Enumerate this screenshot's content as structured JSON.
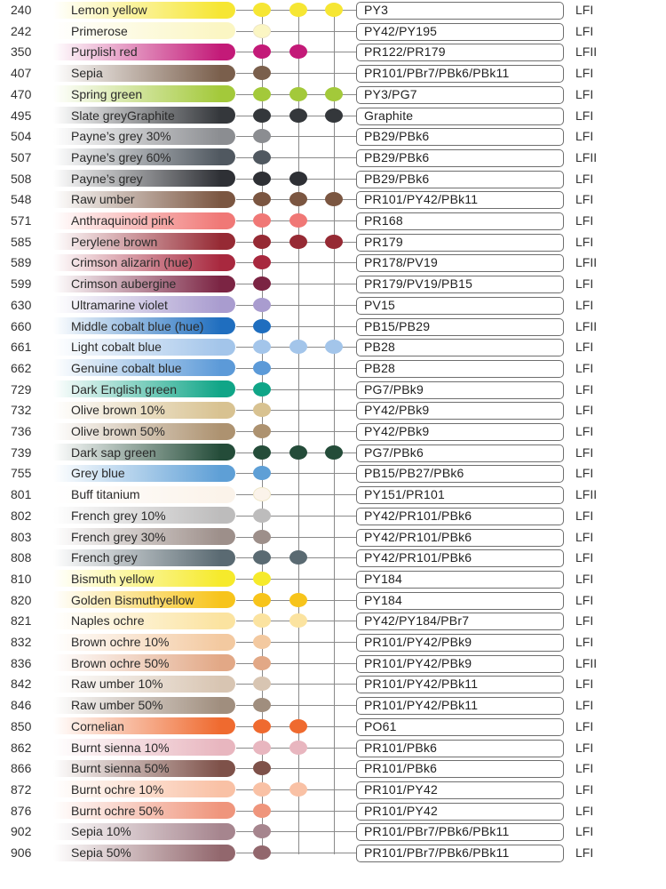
{
  "colors": [
    {
      "code": "240",
      "name": "Lemon yellow",
      "pigments": "PY3",
      "lf": "LFI",
      "color": "#f6e633",
      "dots": [
        true,
        true,
        true
      ]
    },
    {
      "code": "242",
      "name": "Primerose",
      "pigments": "PY42/PY195",
      "lf": "LFI",
      "color": "#fbf6c3",
      "dots": [
        true,
        false,
        false
      ]
    },
    {
      "code": "350",
      "name": "Purplish red",
      "pigments": "PR122/PR179",
      "lf": "LFII",
      "color": "#c31a78",
      "dots": [
        true,
        true,
        false
      ]
    },
    {
      "code": "407",
      "name": "Sepia",
      "pigments": "PR101/PBr7/PBk6/PBk11",
      "lf": "LFI",
      "color": "#7a5f4c",
      "dots": [
        true,
        false,
        false
      ]
    },
    {
      "code": "470",
      "name": "Spring green",
      "pigments": "PY3/PG7",
      "lf": "LFI",
      "color": "#a3c93a",
      "dots": [
        true,
        true,
        true
      ]
    },
    {
      "code": "495",
      "name": "Slate greyGraphite",
      "pigments": "Graphite",
      "lf": "LFI",
      "color": "#34373b",
      "dots": [
        true,
        true,
        true
      ]
    },
    {
      "code": "504",
      "name": "Payne’s grey 30%",
      "pigments": "PB29/PBk6",
      "lf": "LFI",
      "color": "#8b8d91",
      "dots": [
        true,
        false,
        false
      ]
    },
    {
      "code": "507",
      "name": "Payne’s grey 60%",
      "pigments": "PB29/PBk6",
      "lf": "LFII",
      "color": "#505860",
      "dots": [
        true,
        false,
        false
      ]
    },
    {
      "code": "508",
      "name": "Payne’s grey",
      "pigments": "PB29/PBk6",
      "lf": "LFI",
      "color": "#2e3035",
      "dots": [
        true,
        true,
        false
      ]
    },
    {
      "code": "548",
      "name": "Raw umber",
      "pigments": "PR101/PY42/PBk11",
      "lf": "LFI",
      "color": "#7b5641",
      "dots": [
        true,
        true,
        true
      ]
    },
    {
      "code": "571",
      "name": "Anthraquinoid pink",
      "pigments": "PR168",
      "lf": "LFI",
      "color": "#f07876",
      "dots": [
        true,
        true,
        false
      ]
    },
    {
      "code": "585",
      "name": "Perylene brown",
      "pigments": "PR179",
      "lf": "LFI",
      "color": "#962a34",
      "dots": [
        true,
        true,
        true
      ]
    },
    {
      "code": "589",
      "name": "Crimson alizarin (hue)",
      "pigments": "PR178/PV19",
      "lf": "LFII",
      "color": "#a8283e",
      "dots": [
        true,
        false,
        false
      ]
    },
    {
      "code": "599",
      "name": "Crimson aubergine",
      "pigments": "PR179/PV19/PB15",
      "lf": "LFI",
      "color": "#7b2443",
      "dots": [
        true,
        false,
        false
      ]
    },
    {
      "code": "630",
      "name": "Ultramarine violet",
      "pigments": "PV15",
      "lf": "LFI",
      "color": "#a99ccf",
      "dots": [
        true,
        false,
        false
      ]
    },
    {
      "code": "660",
      "name": "Middle cobalt blue (hue)",
      "pigments": "PB15/PB29",
      "lf": "LFII",
      "color": "#1f6ebf",
      "dots": [
        true,
        false,
        false
      ]
    },
    {
      "code": "661",
      "name": "Light cobalt blue",
      "pigments": "PB28",
      "lf": "LFI",
      "color": "#a3c5ea",
      "dots": [
        true,
        true,
        true
      ]
    },
    {
      "code": "662",
      "name": "Genuine cobalt blue",
      "pigments": "PB28",
      "lf": "LFI",
      "color": "#5c9ad8",
      "dots": [
        true,
        false,
        false
      ]
    },
    {
      "code": "729",
      "name": "Dark English green",
      "pigments": "PG7/PBk9",
      "lf": "LFI",
      "color": "#10a587",
      "dots": [
        true,
        false,
        false
      ]
    },
    {
      "code": "732",
      "name": "Olive brown 10%",
      "pigments": "PY42/PBk9",
      "lf": "LFI",
      "color": "#d8c291",
      "dots": [
        true,
        false,
        false
      ]
    },
    {
      "code": "736",
      "name": "Olive brown 50%",
      "pigments": "PY42/PBk9",
      "lf": "LFI",
      "color": "#ad9270",
      "dots": [
        true,
        false,
        false
      ]
    },
    {
      "code": "739",
      "name": "Dark sap green",
      "pigments": "PG7/PBk6",
      "lf": "LFI",
      "color": "#244c39",
      "dots": [
        true,
        true,
        true
      ]
    },
    {
      "code": "755",
      "name": "Grey blue",
      "pigments": "PB15/PB27/PBk6",
      "lf": "LFI",
      "color": "#5e9fd6",
      "dots": [
        true,
        false,
        false
      ]
    },
    {
      "code": "801",
      "name": "Buff titanium",
      "pigments": "PY151/PR101",
      "lf": "LFII",
      "color": "#fbf3ea",
      "dots": [
        true,
        false,
        false
      ]
    },
    {
      "code": "802",
      "name": "French grey 10%",
      "pigments": "PY42/PR101/PBk6",
      "lf": "LFI",
      "color": "#bdbcbc",
      "dots": [
        true,
        false,
        false
      ]
    },
    {
      "code": "803",
      "name": "French grey 30%",
      "pigments": "PY42/PR101/PBk6",
      "lf": "LFI",
      "color": "#9d8f8a",
      "dots": [
        true,
        false,
        false
      ]
    },
    {
      "code": "808",
      "name": "French grey",
      "pigments": "PY42/PR101/PBk6",
      "lf": "LFI",
      "color": "#5a6a72",
      "dots": [
        true,
        true,
        false
      ]
    },
    {
      "code": "810",
      "name": "Bismuth yellow",
      "pigments": "PY184",
      "lf": "LFI",
      "color": "#f6ea2b",
      "dots": [
        true,
        false,
        false
      ]
    },
    {
      "code": "820",
      "name": "Golden Bismuthyellow",
      "pigments": "PY184",
      "lf": "LFI",
      "color": "#f7c41b",
      "dots": [
        true,
        true,
        false
      ]
    },
    {
      "code": "821",
      "name": "Naples ochre",
      "pigments": "PY42/PY184/PBr7",
      "lf": "LFI",
      "color": "#fbe3a0",
      "dots": [
        true,
        true,
        false
      ]
    },
    {
      "code": "832",
      "name": "Brown ochre 10%",
      "pigments": "PR101/PY42/PBk9",
      "lf": "LFI",
      "color": "#f3c9a0",
      "dots": [
        true,
        false,
        false
      ]
    },
    {
      "code": "836",
      "name": "Brown ochre 50%",
      "pigments": "PR101/PY42/PBk9",
      "lf": "LFII",
      "color": "#e2a886",
      "dots": [
        true,
        false,
        false
      ]
    },
    {
      "code": "842",
      "name": "Raw umber 10%",
      "pigments": "PR101/PY42/PBk11",
      "lf": "LFI",
      "color": "#d8c5b2",
      "dots": [
        true,
        false,
        false
      ]
    },
    {
      "code": "846",
      "name": "Raw umber 50%",
      "pigments": "PR101/PY42/PBk11",
      "lf": "LFI",
      "color": "#a08e7e",
      "dots": [
        true,
        false,
        false
      ]
    },
    {
      "code": "850",
      "name": "Cornelian",
      "pigments": "PO61",
      "lf": "LFI",
      "color": "#ef6a2f",
      "dots": [
        true,
        true,
        false
      ]
    },
    {
      "code": "862",
      "name": "Burnt sienna 10%",
      "pigments": "PR101/PBk6",
      "lf": "LFI",
      "color": "#e8b6bf",
      "dots": [
        true,
        true,
        false
      ]
    },
    {
      "code": "866",
      "name": "Burnt sienna 50%",
      "pigments": "PR101/PBk6",
      "lf": "LFI",
      "color": "#7e5149",
      "dots": [
        true,
        false,
        false
      ]
    },
    {
      "code": "872",
      "name": "Burnt ochre 10%",
      "pigments": "PR101/PY42",
      "lf": "LFI",
      "color": "#f9c1a5",
      "dots": [
        true,
        true,
        false
      ]
    },
    {
      "code": "876",
      "name": "Burnt ochre 50%",
      "pigments": "PR101/PY42",
      "lf": "LFI",
      "color": "#ef957c",
      "dots": [
        true,
        false,
        false
      ]
    },
    {
      "code": "902",
      "name": "Sepia 10%",
      "pigments": "PR101/PBr7/PBk6/PBk11",
      "lf": "LFI",
      "color": "#a6858e",
      "dots": [
        true,
        false,
        false
      ]
    },
    {
      "code": "906",
      "name": "Sepia 50%",
      "pigments": "PR101/PBr7/PBk6/PBk11",
      "lf": "LFI",
      "color": "#92676d",
      "dots": [
        true,
        false,
        false
      ]
    }
  ]
}
